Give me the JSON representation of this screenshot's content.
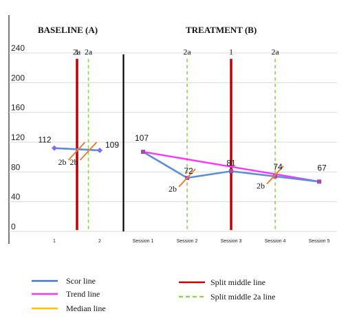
{
  "chart_data": {
    "type": "line",
    "phase_labels": [
      "BASELINE (A)",
      "TREATMENT (B)"
    ],
    "categories": [
      "1",
      "2",
      "Session 1",
      "Session 2",
      "Session 3",
      "Session 4",
      "Session 5"
    ],
    "ylim": [
      0,
      240
    ],
    "yticks": [
      0,
      40,
      80,
      120,
      160,
      200,
      240
    ],
    "series": [
      {
        "name": "Scor line",
        "color": "#5b8fd6",
        "values": [
          112,
          109,
          107,
          72,
          81,
          74,
          67
        ],
        "data_labels": [
          "112",
          "109",
          "107",
          "72",
          "81",
          "74",
          "67"
        ]
      }
    ],
    "trend_lines": [
      {
        "name": "Trend line",
        "color": "#ff33ff",
        "from": [
          0,
          112
        ],
        "to": [
          1,
          109
        ]
      },
      {
        "name": "Trend line",
        "color": "#ff33ff",
        "from": [
          2,
          107
        ],
        "to": [
          6,
          67
        ]
      }
    ],
    "phase_divider_x": 1.5,
    "split_middle_lines": [
      {
        "name": "Split middle line",
        "color": "#c00000",
        "x": 0.5,
        "label": "1"
      },
      {
        "name": "Split middle line",
        "color": "#c00000",
        "x": 4,
        "label": "1"
      }
    ],
    "split_middle_2a_lines": [
      {
        "x": 0.25,
        "label": "2a"
      },
      {
        "x": 0.75,
        "label": "2a"
      },
      {
        "x": 3,
        "label": "2a"
      },
      {
        "x": 5,
        "label": "2a"
      }
    ],
    "median_marks": [
      {
        "x": 0.25,
        "y": 108,
        "label": "2b"
      },
      {
        "x": 0.75,
        "y": 108,
        "label": "2b"
      },
      {
        "x": 3,
        "y": 72,
        "label": "2b"
      },
      {
        "x": 5,
        "y": 76,
        "label": "2b"
      }
    ],
    "legend": {
      "placement": "bottom",
      "items": [
        {
          "label": "Scor line",
          "color": "#4472c4",
          "style": "solid"
        },
        {
          "label": "Trend line",
          "color": "#ff33ff",
          "style": "solid"
        },
        {
          "label": "Median line",
          "color": "#ffc000",
          "style": "solid"
        },
        {
          "label": "Split middle line",
          "color": "#c00000",
          "style": "solid"
        },
        {
          "label": "Split middle 2a line",
          "color": "#92d050",
          "style": "dashed"
        }
      ]
    }
  }
}
